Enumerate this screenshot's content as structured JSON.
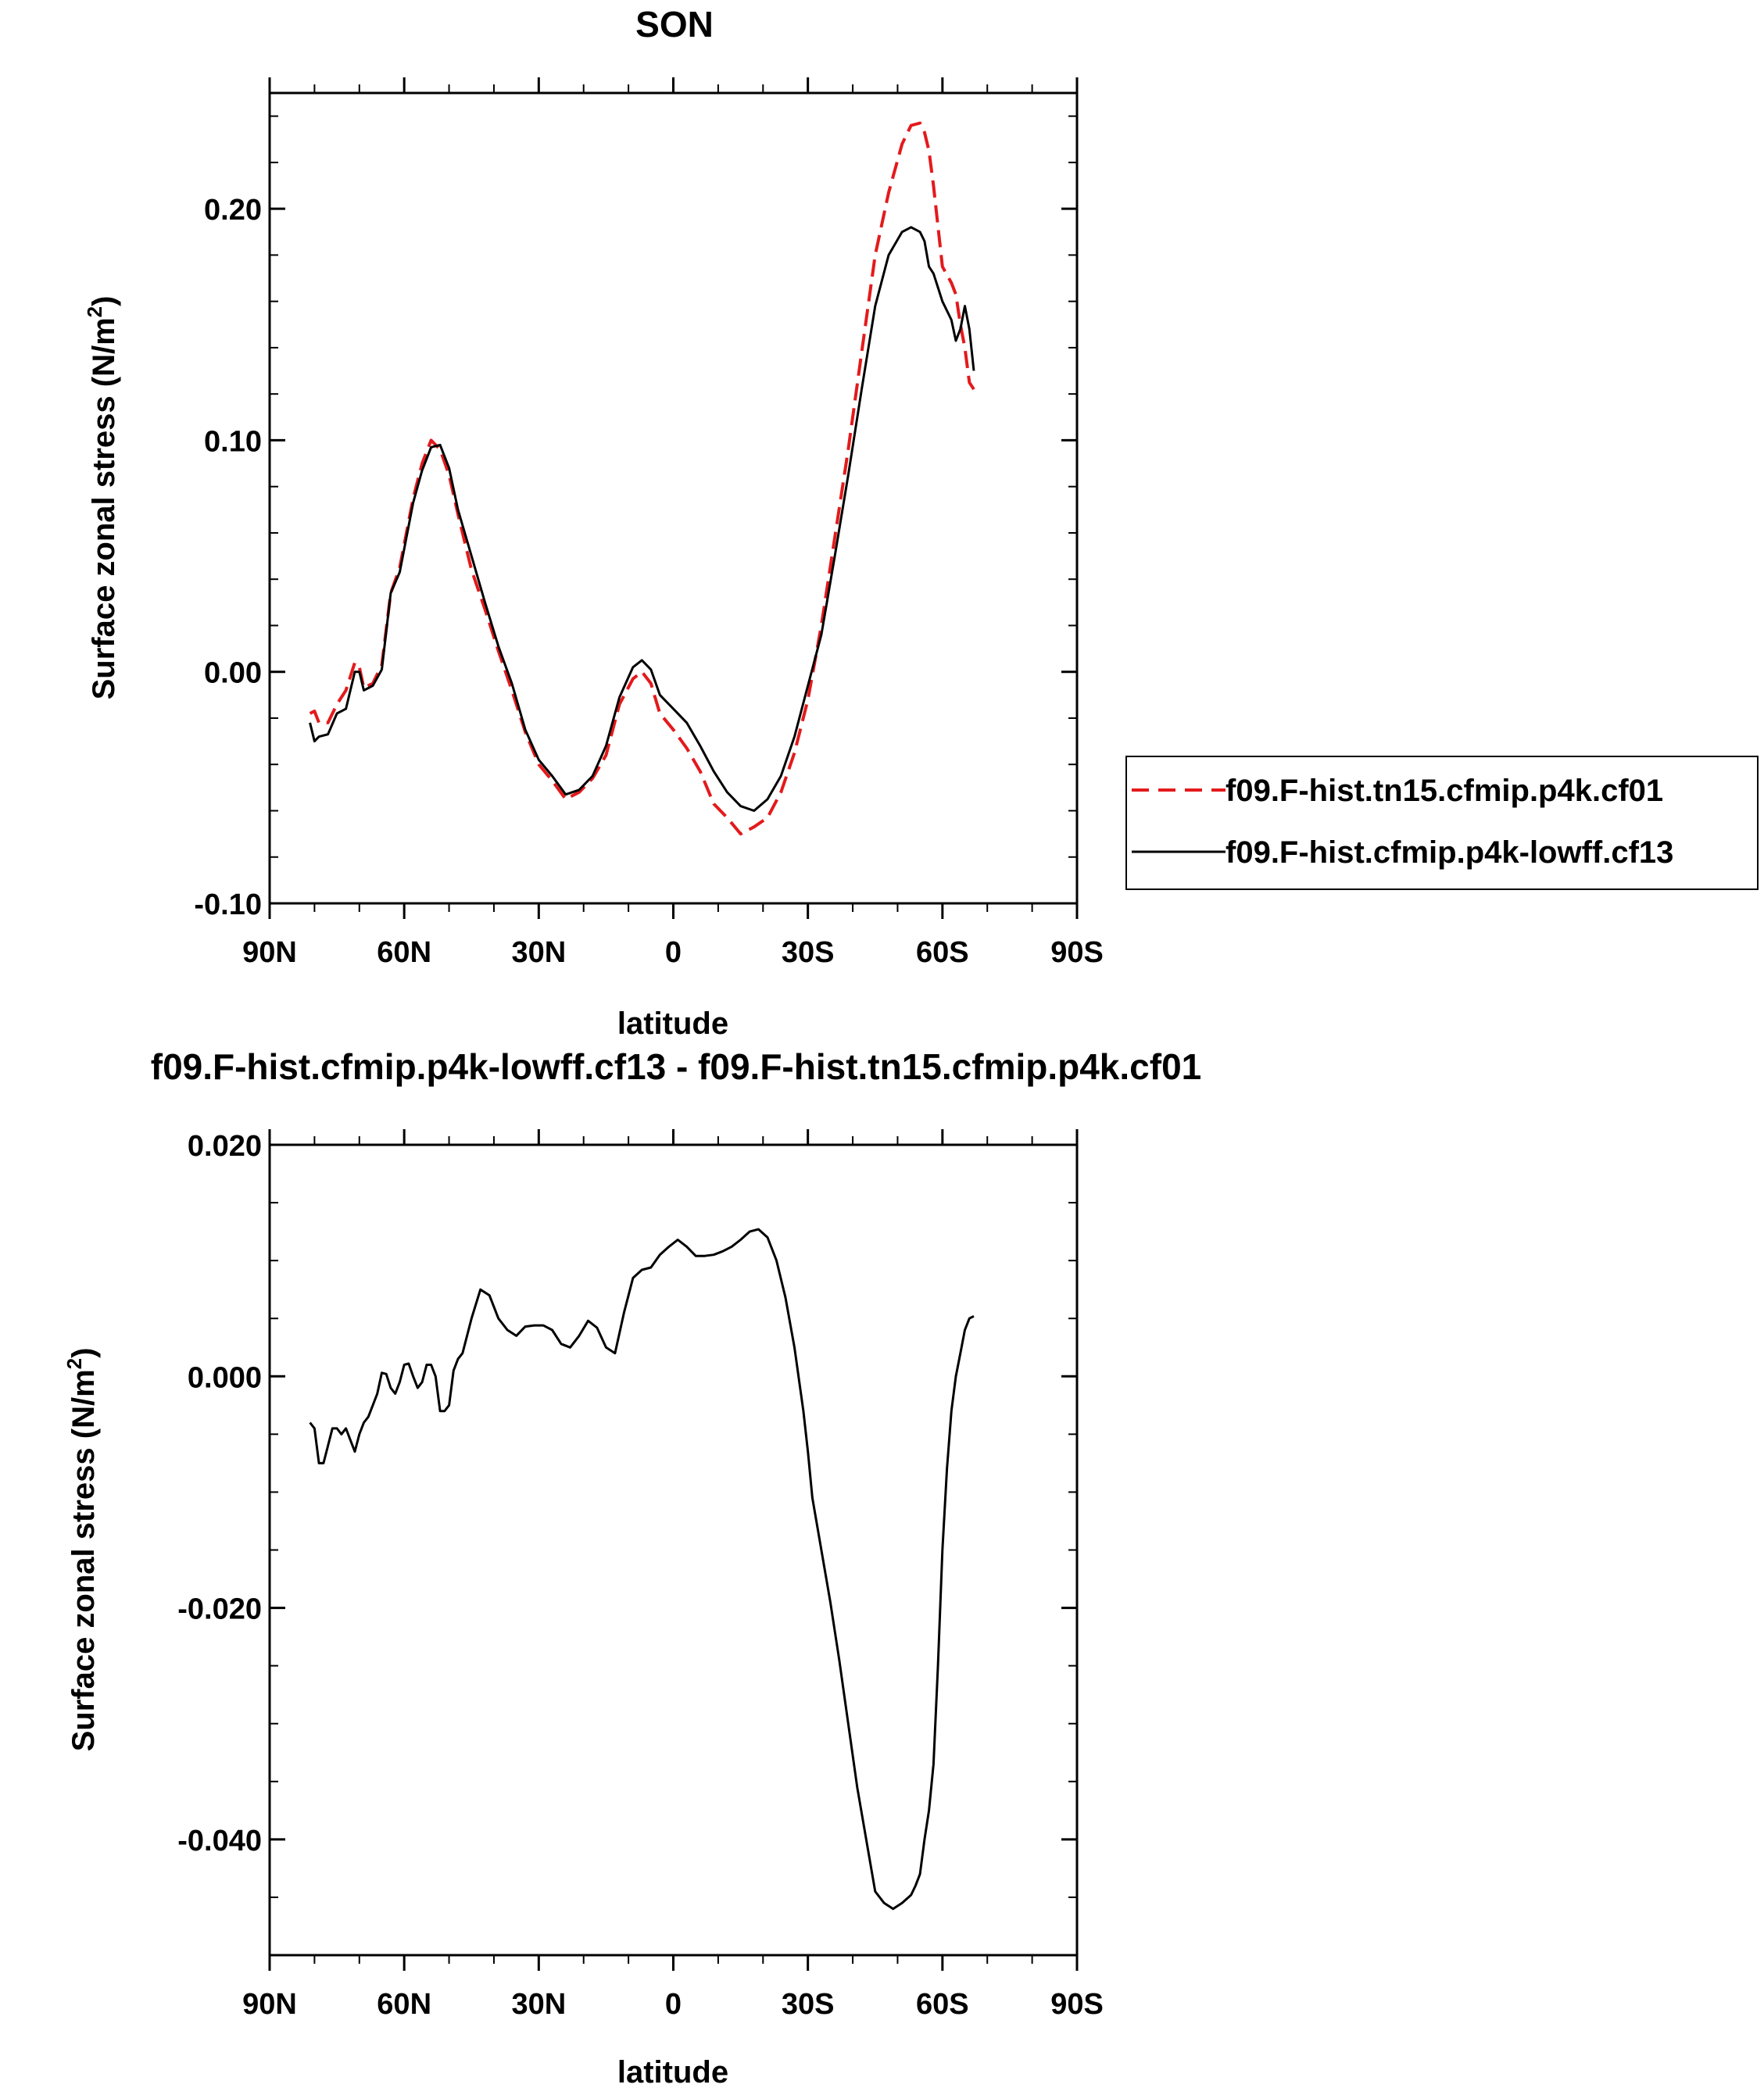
{
  "chart_data": [
    {
      "type": "line",
      "title": "SON",
      "xlabel": "latitude",
      "ylabel": "Surface zonal stress (N/m",
      "ylabel_sup": "2",
      "ylabel_close": ")",
      "xlim": [
        90,
        -90
      ],
      "ylim": [
        -0.1,
        0.25
      ],
      "x_ticks": [
        90,
        60,
        30,
        0,
        -30,
        -60,
        -90
      ],
      "x_tick_labels": [
        "90N",
        "60N",
        "30N",
        "0",
        "30S",
        "60S",
        "90S"
      ],
      "y_ticks": [
        -0.1,
        0.0,
        0.1,
        0.2
      ],
      "y_tick_labels": [
        "-0.10",
        "0.00",
        "0.10",
        "0.20"
      ],
      "legend_position": "right",
      "series": [
        {
          "name": "f09.F-hist.tn15.cfmip.p4k.cf01",
          "color": "#e31a1c",
          "dash": "dashed",
          "x": [
            81,
            80,
            79,
            77,
            75,
            73,
            71,
            70,
            69,
            67,
            65,
            63,
            61,
            58,
            56,
            54,
            52,
            50,
            48,
            45,
            42,
            39,
            36,
            33,
            30,
            27,
            24,
            21,
            18,
            15,
            12,
            9,
            7,
            5,
            3,
            0,
            -3,
            -6,
            -9,
            -12,
            -15,
            -18,
            -21,
            -24,
            -27,
            -30,
            -33,
            -36,
            -39,
            -42,
            -45,
            -48,
            -51,
            -53,
            -55,
            -56,
            -57,
            -58,
            -60,
            -62,
            -63,
            -64,
            -65,
            -66,
            -67
          ],
          "y": [
            -0.018,
            -0.017,
            -0.022,
            -0.022,
            -0.014,
            -0.008,
            0.004,
            0.002,
            -0.007,
            -0.005,
            0.003,
            0.034,
            0.045,
            0.075,
            0.09,
            0.1,
            0.096,
            0.085,
            0.068,
            0.044,
            0.027,
            0.009,
            -0.008,
            -0.026,
            -0.04,
            -0.047,
            -0.055,
            -0.052,
            -0.046,
            -0.036,
            -0.014,
            -0.003,
            0.0,
            -0.005,
            -0.018,
            -0.025,
            -0.033,
            -0.043,
            -0.057,
            -0.063,
            -0.07,
            -0.067,
            -0.063,
            -0.052,
            -0.035,
            -0.012,
            0.02,
            0.058,
            0.096,
            0.138,
            0.18,
            0.207,
            0.228,
            0.236,
            0.237,
            0.233,
            0.225,
            0.21,
            0.175,
            0.168,
            0.163,
            0.15,
            0.14,
            0.125,
            0.122
          ]
        },
        {
          "name": "f09.F-hist.cfmip.p4k-lowff.cf13",
          "color": "#000000",
          "dash": "solid",
          "x": [
            81,
            80,
            79,
            77,
            75,
            73,
            71,
            70,
            69,
            67,
            65,
            63,
            61,
            58,
            56,
            54,
            52,
            50,
            48,
            45,
            42,
            39,
            36,
            33,
            30,
            27,
            24,
            21,
            18,
            15,
            12,
            9,
            7,
            5,
            3,
            0,
            -3,
            -6,
            -9,
            -12,
            -15,
            -18,
            -21,
            -24,
            -27,
            -30,
            -33,
            -36,
            -39,
            -42,
            -45,
            -48,
            -51,
            -53,
            -55,
            -56,
            -57,
            -58,
            -60,
            -62,
            -63,
            -64,
            -65,
            -66,
            -67
          ],
          "y": [
            -0.022,
            -0.03,
            -0.028,
            -0.027,
            -0.018,
            -0.016,
            0.0,
            0.0,
            -0.008,
            -0.006,
            0.001,
            0.034,
            0.043,
            0.073,
            0.087,
            0.097,
            0.098,
            0.088,
            0.07,
            0.05,
            0.03,
            0.011,
            -0.005,
            -0.025,
            -0.038,
            -0.045,
            -0.053,
            -0.051,
            -0.045,
            -0.032,
            -0.011,
            0.002,
            0.005,
            0.001,
            -0.01,
            -0.016,
            -0.022,
            -0.032,
            -0.043,
            -0.052,
            -0.058,
            -0.06,
            -0.055,
            -0.045,
            -0.028,
            -0.006,
            0.016,
            0.05,
            0.085,
            0.122,
            0.158,
            0.18,
            0.19,
            0.192,
            0.19,
            0.186,
            0.175,
            0.172,
            0.16,
            0.152,
            0.143,
            0.148,
            0.158,
            0.148,
            0.13
          ]
        }
      ]
    },
    {
      "type": "line",
      "title": "f09.F-hist.cfmip.p4k-lowff.cf13 - f09.F-hist.tn15.cfmip.p4k.cf01",
      "xlabel": "latitude",
      "ylabel": "Surface zonal stress (N/m",
      "ylabel_sup": "2",
      "ylabel_close": ")",
      "xlim": [
        90,
        -90
      ],
      "ylim": [
        -0.05,
        0.02
      ],
      "x_ticks": [
        90,
        60,
        30,
        0,
        -30,
        -60,
        -90
      ],
      "x_tick_labels": [
        "90N",
        "60N",
        "30N",
        "0",
        "30S",
        "60S",
        "90S"
      ],
      "y_ticks": [
        -0.04,
        -0.02,
        0.0,
        0.02
      ],
      "y_tick_labels": [
        "-0.040",
        "-0.020",
        "0.000",
        "0.020"
      ],
      "series": [
        {
          "color": "#000000",
          "dash": "solid",
          "x": [
            81,
            80,
            79,
            78,
            77,
            76,
            75,
            74,
            73,
            72,
            71,
            70,
            69,
            68,
            67,
            66,
            65,
            64,
            63,
            62,
            61,
            60,
            59,
            58,
            57,
            56,
            55,
            54,
            53,
            52,
            51,
            50,
            49,
            48,
            47,
            45,
            43,
            41,
            39,
            37,
            35,
            33,
            31,
            29,
            27,
            25,
            23,
            21,
            19,
            17,
            15,
            13,
            11,
            9,
            7,
            5,
            3,
            1,
            -1,
            -3,
            -5,
            -7,
            -9,
            -11,
            -13,
            -15,
            -17,
            -19,
            -21,
            -23,
            -25,
            -27,
            -29,
            -30,
            -31,
            -33,
            -35,
            -37,
            -39,
            -41,
            -43,
            -45,
            -47,
            -49,
            -51,
            -53,
            -54,
            -55,
            -56,
            -57,
            -58,
            -59,
            -60,
            -61,
            -62,
            -63,
            -64,
            -65,
            -66,
            -67
          ],
          "y": [
            -0.004,
            -0.0045,
            -0.0075,
            -0.0075,
            -0.006,
            -0.0045,
            -0.0045,
            -0.005,
            -0.0045,
            -0.0055,
            -0.0065,
            -0.005,
            -0.004,
            -0.0035,
            -0.0025,
            -0.0015,
            0.0003,
            0.0002,
            -0.001,
            -0.0015,
            -0.0005,
            0.001,
            0.0011,
            0.0,
            -0.001,
            -0.0005,
            0.001,
            0.001,
            0.0,
            -0.003,
            -0.003,
            -0.0025,
            0.0005,
            0.0015,
            0.002,
            0.005,
            0.0075,
            0.007,
            0.005,
            0.004,
            0.0035,
            0.0043,
            0.0044,
            0.0044,
            0.004,
            0.0028,
            0.0025,
            0.0035,
            0.0048,
            0.0042,
            0.0025,
            0.002,
            0.0055,
            0.0085,
            0.0092,
            0.0094,
            0.0105,
            0.0112,
            0.0118,
            0.0112,
            0.0104,
            0.0104,
            0.0105,
            0.0108,
            0.0112,
            0.0118,
            0.0125,
            0.0127,
            0.012,
            0.01,
            0.0068,
            0.0025,
            -0.003,
            -0.0065,
            -0.0105,
            -0.015,
            -0.0195,
            -0.0245,
            -0.03,
            -0.0355,
            -0.04,
            -0.0445,
            -0.0455,
            -0.046,
            -0.0455,
            -0.0448,
            -0.044,
            -0.043,
            -0.04,
            -0.0375,
            -0.0335,
            -0.025,
            -0.015,
            -0.008,
            -0.003,
            0.0,
            0.002,
            0.004,
            0.005,
            0.0052
          ]
        }
      ]
    }
  ]
}
